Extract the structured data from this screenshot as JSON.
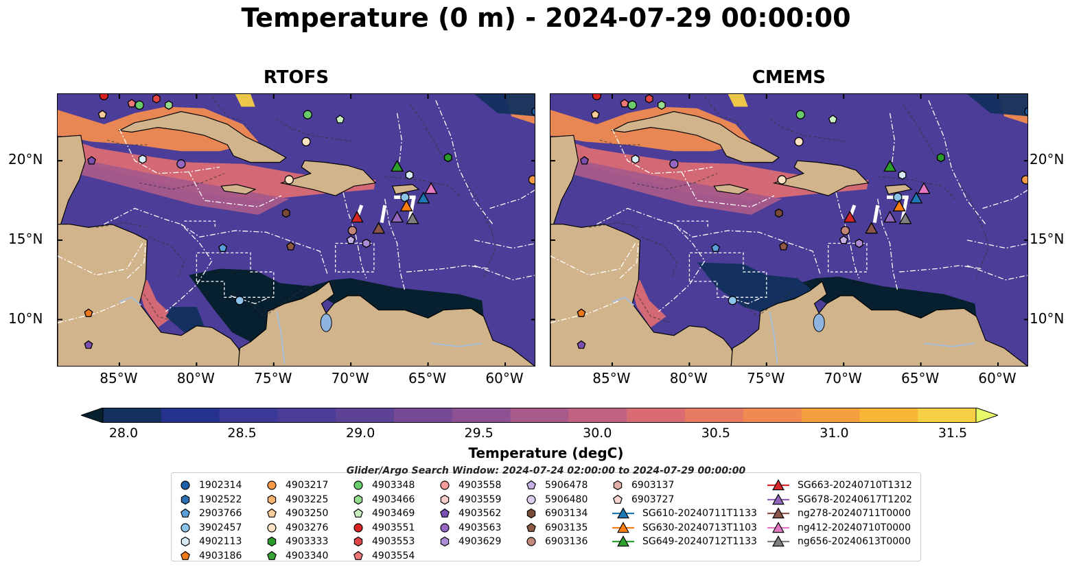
{
  "title": "Temperature (0 m) - 2024-07-29 00:00:00",
  "panels": [
    {
      "title": "RTOFS"
    },
    {
      "title": "CMEMS"
    }
  ],
  "axes": {
    "lon_labels": [
      "85°W",
      "80°W",
      "75°W",
      "70°W",
      "65°W",
      "60°W"
    ],
    "lon_values": [
      -85,
      -80,
      -75,
      -70,
      -65,
      -60
    ],
    "lat_labels": [
      "20°N",
      "15°N",
      "10°N"
    ],
    "lat_values": [
      20,
      15,
      10
    ],
    "lon_range": [
      -89,
      -58
    ],
    "lat_range": [
      7,
      24.2
    ]
  },
  "colorbar": {
    "label": "Temperature (degC)",
    "tick_labels": [
      "28.0",
      "28.5",
      "29.0",
      "29.5",
      "30.0",
      "30.5",
      "31.0",
      "31.5"
    ],
    "tick_values": [
      28.0,
      28.5,
      29.0,
      29.5,
      30.0,
      30.5,
      31.0,
      31.5
    ],
    "range": [
      28.0,
      31.5
    ],
    "colors": [
      "#06202f",
      "#13305e",
      "#26338e",
      "#3b3a98",
      "#4b3c98",
      "#5e4296",
      "#764a94",
      "#8e5292",
      "#a85a8a",
      "#c26282",
      "#d96c72",
      "#e67a62",
      "#f08a50",
      "#f59e3f",
      "#f7b636",
      "#f6cf44",
      "#e6fa6a"
    ]
  },
  "legend": {
    "caption": "Glider/Argo Search Window: 2024-07-24 02:00:00 to 2024-07-29 00:00:00",
    "items": [
      {
        "label": "1902314",
        "shape": "circle",
        "color": "#1f5fa6"
      },
      {
        "label": "1902522",
        "shape": "hexagon",
        "color": "#2f6fb5"
      },
      {
        "label": "2903766",
        "shape": "pentagon",
        "color": "#5a9fd8"
      },
      {
        "label": "3902457",
        "shape": "circle",
        "color": "#8cc3ea"
      },
      {
        "label": "4902113",
        "shape": "hexagon",
        "color": "#d7ebf7"
      },
      {
        "label": "4903186",
        "shape": "pentagon",
        "color": "#f07a1a"
      },
      {
        "label": "4903217",
        "shape": "circle",
        "color": "#f59a45"
      },
      {
        "label": "4903225",
        "shape": "hexagon",
        "color": "#f7b46e"
      },
      {
        "label": "4903250",
        "shape": "pentagon",
        "color": "#f9cd98"
      },
      {
        "label": "4903276",
        "shape": "circle",
        "color": "#fde3c3"
      },
      {
        "label": "4903333",
        "shape": "hexagon",
        "color": "#2a9a2a"
      },
      {
        "label": "4903340",
        "shape": "pentagon",
        "color": "#35a435"
      },
      {
        "label": "4903348",
        "shape": "circle",
        "color": "#6acb6a"
      },
      {
        "label": "4903466",
        "shape": "hexagon",
        "color": "#97dc8e"
      },
      {
        "label": "4903469",
        "shape": "pentagon",
        "color": "#c9efbe"
      },
      {
        "label": "4903551",
        "shape": "circle",
        "color": "#d62222"
      },
      {
        "label": "4903553",
        "shape": "hexagon",
        "color": "#e04646"
      },
      {
        "label": "4903554",
        "shape": "pentagon",
        "color": "#ee7777"
      },
      {
        "label": "4903558",
        "shape": "circle",
        "color": "#f69a9a"
      },
      {
        "label": "4903559",
        "shape": "hexagon",
        "color": "#fbcaca"
      },
      {
        "label": "4903562",
        "shape": "pentagon",
        "color": "#7a4fb0"
      },
      {
        "label": "4903563",
        "shape": "circle",
        "color": "#9468c2"
      },
      {
        "label": "4903629",
        "shape": "hexagon",
        "color": "#ad8bd6"
      },
      {
        "label": "5906478",
        "shape": "pentagon",
        "color": "#c6aee6"
      },
      {
        "label": "5906480",
        "shape": "circle",
        "color": "#ddcdf2"
      },
      {
        "label": "6903134",
        "shape": "hexagon",
        "color": "#7a4a38"
      },
      {
        "label": "6903135",
        "shape": "pentagon",
        "color": "#8e5a45"
      },
      {
        "label": "6903136",
        "shape": "circle",
        "color": "#c4887a"
      },
      {
        "label": "6903137",
        "shape": "hexagon",
        "color": "#e0aea3"
      },
      {
        "label": "6903727",
        "shape": "pentagon",
        "color": "#f8d6cf"
      },
      {
        "label": "SG610-20240711T1133",
        "shape": "triangle-line",
        "color": "#1f77b4"
      },
      {
        "label": "SG630-20240713T1103",
        "shape": "triangle-line",
        "color": "#ff7f0e"
      },
      {
        "label": "SG649-20240712T1133",
        "shape": "triangle-line",
        "color": "#2ca02c"
      },
      {
        "label": "SG663-20240710T1312",
        "shape": "triangle-line",
        "color": "#d62728"
      },
      {
        "label": "SG678-20240617T1202",
        "shape": "triangle-line",
        "color": "#9467bd"
      },
      {
        "label": "ng278-20240711T0000",
        "shape": "triangle-line",
        "color": "#8c564b"
      },
      {
        "label": "ng412-20240710T0000",
        "shape": "triangle-line",
        "color": "#e377c2"
      },
      {
        "label": "ng656-20240613T0000",
        "shape": "triangle-line",
        "color": "#7f7f7f"
      }
    ]
  },
  "markers": [
    {
      "id": "1902314",
      "lon": -58.0,
      "lat": 23.1
    },
    {
      "id": "4903217",
      "lon": -58.2,
      "lat": 18.8
    },
    {
      "id": "4903186",
      "lon": -87.0,
      "lat": 10.4
    },
    {
      "id": "4903250",
      "lon": -86.1,
      "lat": 22.9
    },
    {
      "id": "4903276",
      "lon": -72.9,
      "lat": 21.2
    },
    {
      "id": "4903276",
      "lon": -74.0,
      "lat": 18.8
    },
    {
      "id": "4903333",
      "lon": -63.7,
      "lat": 20.2
    },
    {
      "id": "4903348",
      "lon": -72.8,
      "lat": 22.9
    },
    {
      "id": "4903348",
      "lon": -83.7,
      "lat": 23.5
    },
    {
      "id": "4903466",
      "lon": -81.8,
      "lat": 23.5
    },
    {
      "id": "4903469",
      "lon": -70.7,
      "lat": 22.6
    },
    {
      "id": "4903551",
      "lon": -86.0,
      "lat": 24.1
    },
    {
      "id": "4903553",
      "lon": -82.6,
      "lat": 23.9
    },
    {
      "id": "4903554",
      "lon": -84.2,
      "lat": 23.6
    },
    {
      "id": "4902113",
      "lon": -66.2,
      "lat": 19.1
    },
    {
      "id": "4902113",
      "lon": -83.5,
      "lat": 20.1
    },
    {
      "id": "3902457",
      "lon": -66.5,
      "lat": 17.7
    },
    {
      "id": "3902457",
      "lon": -77.2,
      "lat": 11.2
    },
    {
      "id": "2903766",
      "lon": -78.3,
      "lat": 14.5
    },
    {
      "id": "4903562",
      "lon": -86.8,
      "lat": 20.0
    },
    {
      "id": "4903562",
      "lon": -87.0,
      "lat": 8.4
    },
    {
      "id": "4903563",
      "lon": -81.0,
      "lat": 19.8
    },
    {
      "id": "4903629",
      "lon": -69.0,
      "lat": 14.8
    },
    {
      "id": "5906478",
      "lon": -70.0,
      "lat": 15.0
    },
    {
      "id": "6903134",
      "lon": -74.2,
      "lat": 16.7
    },
    {
      "id": "6903135",
      "lon": -73.9,
      "lat": 14.6
    },
    {
      "id": "6903136",
      "lon": -69.9,
      "lat": 15.6
    },
    {
      "id": "SG663-20240710T1312",
      "lon": -69.6,
      "lat": 16.4
    },
    {
      "id": "ng278-20240711T0000",
      "lon": -68.2,
      "lat": 15.7
    },
    {
      "id": "SG678-20240617T1202",
      "lon": -67.0,
      "lat": 16.4
    },
    {
      "id": "ng656-20240613T0000",
      "lon": -66.0,
      "lat": 16.3
    },
    {
      "id": "SG630-20240713T1103",
      "lon": -66.4,
      "lat": 17.1
    },
    {
      "id": "SG610-20240711T1133",
      "lon": -65.3,
      "lat": 17.6
    },
    {
      "id": "ng412-20240710T0000",
      "lon": -64.8,
      "lat": 18.2
    },
    {
      "id": "SG649-20240712T1133",
      "lon": -67.0,
      "lat": 19.6
    }
  ]
}
